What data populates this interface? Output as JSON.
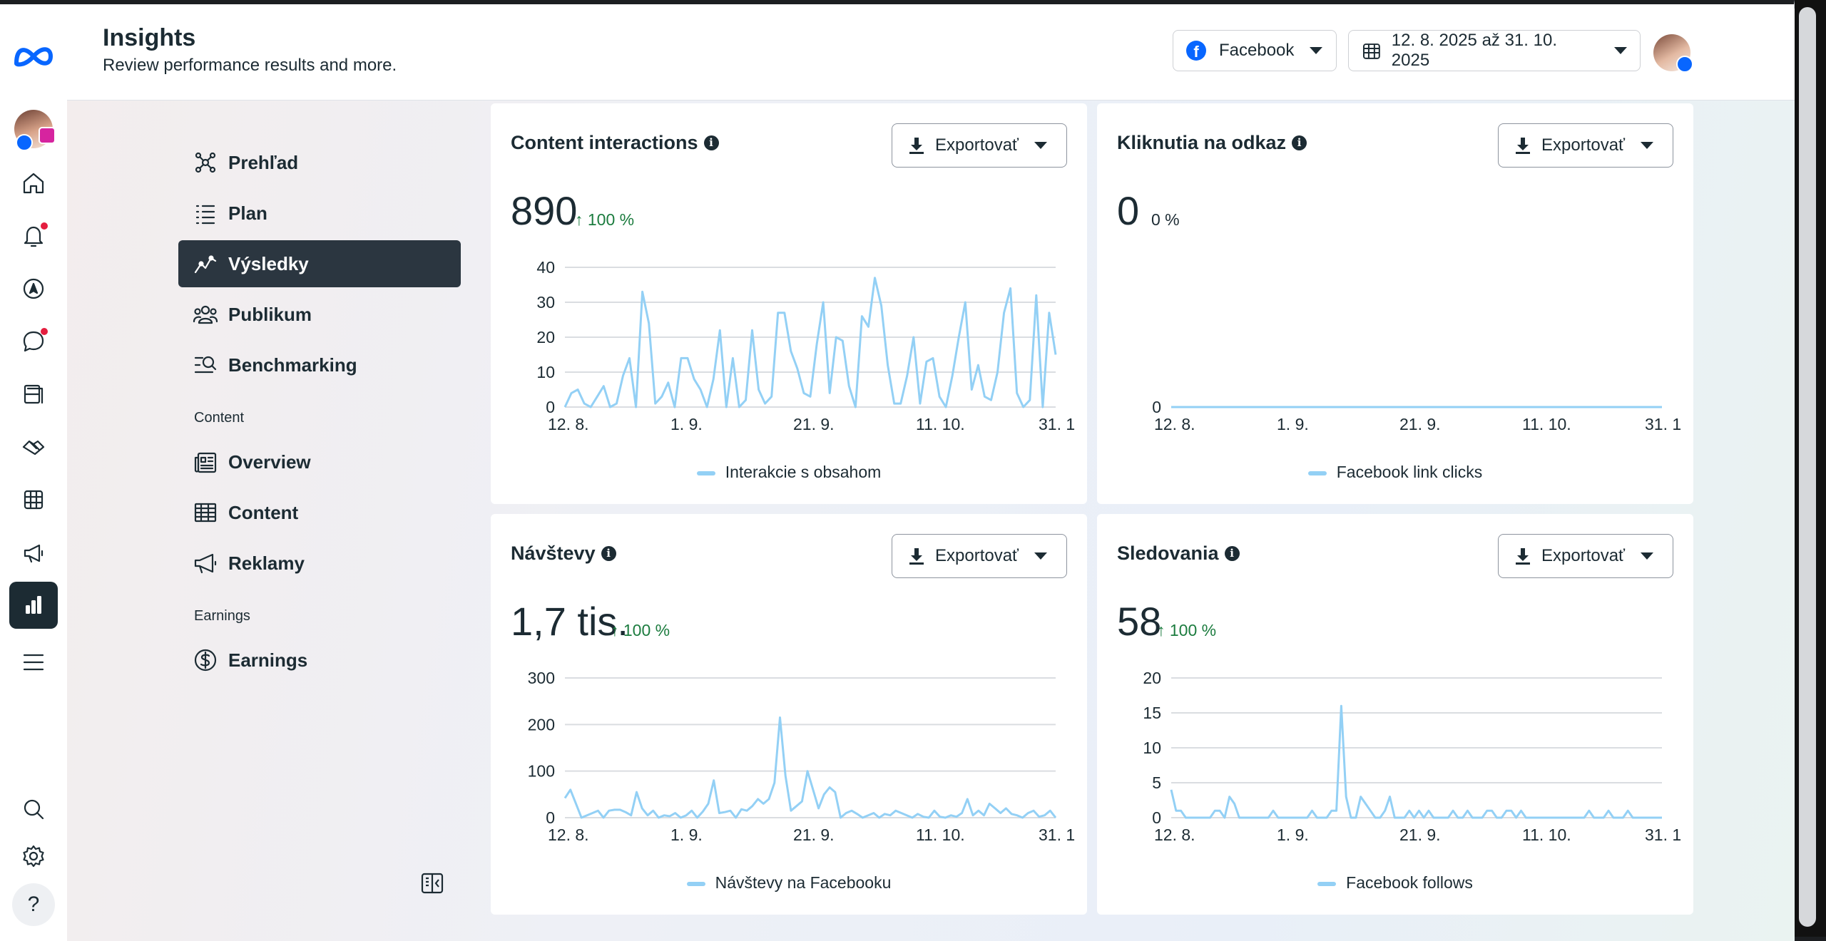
{
  "app": {
    "title": "Insights",
    "subtitle": "Review performance results and more."
  },
  "header": {
    "platform_label": "Facebook",
    "date_range": "12. 8. 2025 až 31. 10. 2025"
  },
  "rail": {
    "icons": [
      "meta-logo-icon",
      "profile-avatar",
      "home-icon",
      "notifications-icon",
      "compass-icon",
      "messages-icon",
      "content-icon",
      "partnerships-icon",
      "table-icon",
      "megaphone-icon",
      "insights-icon",
      "menu-icon",
      "search-icon",
      "settings-icon",
      "help-icon"
    ]
  },
  "nav": {
    "items": [
      {
        "label": "Prehľad",
        "icon": "overview-icon"
      },
      {
        "label": "Plan",
        "icon": "plan-icon"
      },
      {
        "label": "Výsledky",
        "icon": "results-icon",
        "active": true
      },
      {
        "label": "Publikum",
        "icon": "audience-icon"
      },
      {
        "label": "Benchmarking",
        "icon": "benchmarking-icon"
      }
    ],
    "content_section": "Content",
    "content_items": [
      {
        "label": "Overview",
        "icon": "newspaper-icon"
      },
      {
        "label": "Content",
        "icon": "table-icon"
      },
      {
        "label": "Reklamy",
        "icon": "megaphone-icon"
      }
    ],
    "earnings_section": "Earnings",
    "earnings_items": [
      {
        "label": "Earnings",
        "icon": "dollar-icon"
      }
    ]
  },
  "cards": [
    {
      "title": "Content interactions",
      "export_label": "Exportovať",
      "value": "890",
      "change": "100 %",
      "arrow": "↑",
      "legend": "Interakcie s obsahom"
    },
    {
      "title": "Kliknutia na odkaz",
      "export_label": "Exportovať",
      "value": "0",
      "change": "0 %",
      "arrow": "",
      "legend": "Facebook link clicks"
    },
    {
      "title": "Návštevy",
      "export_label": "Exportovať",
      "value": "1,7 tis.",
      "change": "100 %",
      "arrow": "↑",
      "legend": "Návštevy na Facebooku"
    },
    {
      "title": "Sledovania",
      "export_label": "Exportovať",
      "value": "58",
      "change": "100 %",
      "arrow": "↑",
      "legend": "Facebook follows"
    }
  ],
  "colors": {
    "line": "#93d0f5",
    "grid": "#dadde1",
    "active_nav": "#2b3640",
    "positive": "#1c7c3f"
  },
  "chart_data": [
    {
      "type": "line",
      "title": "Content interactions",
      "x_ticks": [
        "12. 8.",
        "1. 9.",
        "21. 9.",
        "11. 10.",
        "31. 1"
      ],
      "y_ticks": [
        0,
        10,
        20,
        30,
        40
      ],
      "ylim": [
        0,
        40
      ],
      "series": [
        {
          "name": "Interakcie s obsahom",
          "values": [
            0,
            4,
            5,
            1,
            0,
            3,
            6,
            0,
            1,
            9,
            14,
            0,
            33,
            24,
            1,
            3,
            7,
            0,
            14,
            14,
            8,
            5,
            0,
            8,
            22,
            0,
            14,
            0,
            2,
            22,
            5,
            1,
            3,
            27,
            27,
            16,
            11,
            4,
            3,
            18,
            30,
            4,
            20,
            19,
            6,
            0,
            26,
            23,
            37,
            29,
            12,
            1,
            1,
            9,
            20,
            1,
            13,
            14,
            3,
            0,
            9,
            20,
            30,
            5,
            12,
            3,
            2,
            10,
            27,
            34,
            4,
            0,
            2,
            32,
            0,
            27,
            15
          ]
        }
      ]
    },
    {
      "type": "line",
      "title": "Kliknutia na odkaz",
      "x_ticks": [
        "12. 8.",
        "1. 9.",
        "21. 9.",
        "11. 10.",
        "31. 1"
      ],
      "y_ticks": [
        0
      ],
      "ylim": [
        0,
        1
      ],
      "series": [
        {
          "name": "Facebook link clicks",
          "values": [
            0,
            0,
            0,
            0,
            0,
            0,
            0,
            0,
            0,
            0,
            0,
            0,
            0,
            0,
            0,
            0,
            0,
            0,
            0,
            0,
            0,
            0,
            0,
            0,
            0,
            0,
            0,
            0,
            0,
            0,
            0,
            0,
            0,
            0,
            0,
            0,
            0,
            0,
            0,
            0,
            0,
            0,
            0,
            0,
            0,
            0,
            0,
            0,
            0,
            0,
            0,
            0,
            0,
            0,
            0,
            0,
            0,
            0,
            0,
            0,
            0,
            0,
            0,
            0,
            0,
            0,
            0,
            0,
            0,
            0,
            0,
            0,
            0,
            0,
            0,
            0,
            0,
            0,
            0,
            0,
            0
          ]
        }
      ]
    },
    {
      "type": "line",
      "title": "Návštevy",
      "x_ticks": [
        "12. 8.",
        "1. 9.",
        "21. 9.",
        "11. 10.",
        "31. 1"
      ],
      "y_ticks": [
        0,
        100,
        200,
        300
      ],
      "ylim": [
        0,
        300
      ],
      "series": [
        {
          "name": "Návštevy na Facebooku",
          "values": [
            42,
            60,
            30,
            0,
            5,
            10,
            15,
            0,
            15,
            17,
            17,
            12,
            5,
            55,
            20,
            5,
            15,
            0,
            5,
            3,
            10,
            0,
            5,
            15,
            0,
            13,
            30,
            80,
            10,
            12,
            15,
            0,
            18,
            15,
            25,
            40,
            30,
            40,
            75,
            215,
            90,
            15,
            25,
            35,
            100,
            60,
            20,
            50,
            65,
            55,
            0,
            10,
            15,
            8,
            0,
            5,
            10,
            0,
            8,
            5,
            15,
            10,
            5,
            0,
            8,
            2,
            0,
            15,
            2,
            0,
            5,
            2,
            10,
            40,
            5,
            15,
            5,
            30,
            20,
            10,
            20,
            8,
            5,
            0,
            10,
            15,
            2,
            5,
            15,
            0
          ]
        }
      ]
    },
    {
      "type": "line",
      "title": "Sledovania",
      "x_ticks": [
        "12. 8.",
        "1. 9.",
        "21. 9.",
        "11. 10.",
        "31. 1"
      ],
      "y_ticks": [
        0,
        5,
        10,
        15,
        20
      ],
      "ylim": [
        0,
        20
      ],
      "series": [
        {
          "name": "Facebook follows",
          "values": [
            4,
            1,
            1,
            0,
            0,
            0,
            0,
            0,
            0,
            1,
            1,
            0,
            3,
            2,
            0,
            0,
            0,
            0,
            0,
            0,
            0,
            1,
            0,
            0,
            0,
            0,
            0,
            0,
            0,
            1,
            0,
            0,
            0,
            1,
            1,
            16,
            3,
            0,
            0,
            3,
            2,
            1,
            0,
            0,
            1,
            3,
            0,
            0,
            0,
            1,
            0,
            1,
            0,
            1,
            0,
            0,
            0,
            0,
            1,
            0,
            0,
            1,
            0,
            0,
            0,
            1,
            1,
            0,
            0,
            1,
            1,
            0,
            1,
            0,
            0,
            0,
            0,
            0,
            0,
            0,
            0,
            0,
            0,
            0,
            0,
            0,
            1,
            0,
            0,
            0,
            1,
            0,
            0,
            0,
            1,
            0,
            0,
            0,
            0,
            0,
            0,
            0
          ]
        }
      ]
    }
  ]
}
